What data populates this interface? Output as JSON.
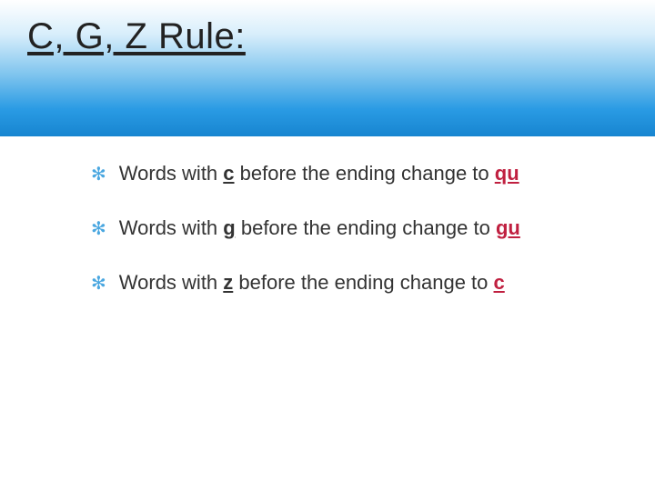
{
  "colors": {
    "gradient_top": "#ffffff",
    "gradient_mid1": "#d8eefb",
    "gradient_mid2": "#7ec4ee",
    "gradient_mid3": "#2a9be4",
    "gradient_bottom": "#1785d0",
    "title_color": "#222222",
    "body_color": "#333333",
    "bullet_color": "#4aa7e0",
    "answer_color": "#c02040"
  },
  "typography": {
    "title_fontsize": 40,
    "title_weight": 400,
    "body_fontsize": 22,
    "answer_weight": 700
  },
  "title": "C, G, Z Rule:",
  "bullets": [
    {
      "pre": "Words with ",
      "letter": "c",
      "post": " before the ending change to ",
      "blank_prefix": "  ",
      "answer": "qu",
      "blank_suffix": "   "
    },
    {
      "pre": "Words with ",
      "letter": "g",
      "post": " before the ending change to ",
      "blank_prefix": "  ",
      "answer": "gu",
      "blank_suffix": "   "
    },
    {
      "pre": "Words with ",
      "letter": "z",
      "post": " before the ending change to ",
      "blank_prefix": "    ",
      "answer": "c",
      "blank_suffix": "     "
    }
  ]
}
